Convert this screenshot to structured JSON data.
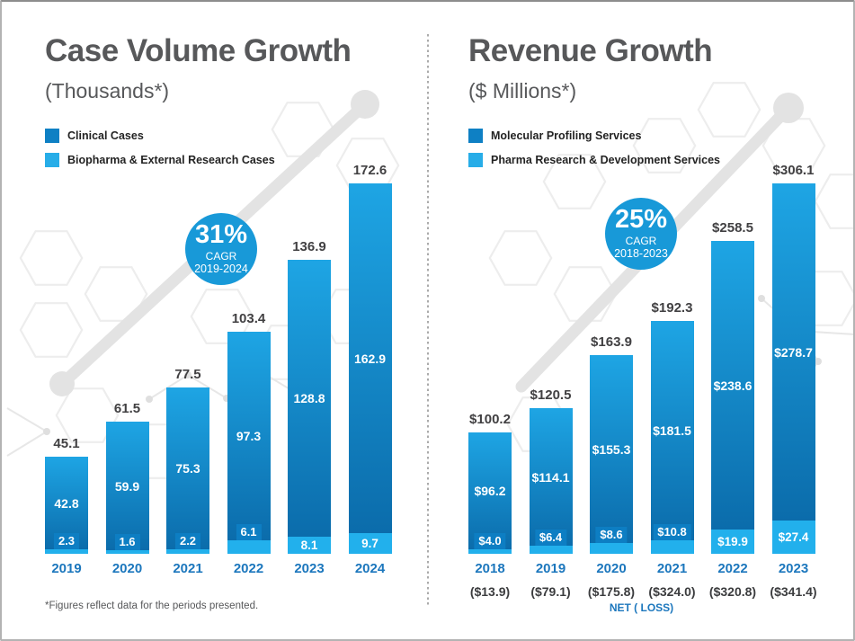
{
  "footnote": "*Figures reflect data for the periods presented.",
  "colors": {
    "series_dark": "#0e80c4",
    "series_light": "#27ade8",
    "bar_gradient_top": "#1ea5e4",
    "bar_gradient_bottom": "#0b6cab",
    "chip": "#0d7ec3",
    "badge": "#1899d8",
    "year_label": "#1c77bd",
    "title_gray": "#57585a"
  },
  "chart_data": [
    {
      "type": "bar",
      "stacked": true,
      "title": "Case Volume Growth",
      "subtitle": "(Thousands*)",
      "value_prefix": "",
      "categories": [
        "2019",
        "2020",
        "2021",
        "2022",
        "2023",
        "2024"
      ],
      "series": [
        {
          "name": "Clinical Cases",
          "color": "#0e80c4",
          "values": [
            42.8,
            59.9,
            75.3,
            97.3,
            128.8,
            162.9
          ]
        },
        {
          "name": "Biopharma & External Research Cases",
          "color": "#27ade8",
          "values": [
            2.3,
            1.6,
            2.2,
            6.1,
            8.1,
            9.7
          ]
        }
      ],
      "totals": [
        45.1,
        61.5,
        77.5,
        103.4,
        136.9,
        172.6
      ],
      "cagr_badge": {
        "value": "31%",
        "label": "CAGR",
        "period": "2019-2024"
      },
      "legend_position": "top-left",
      "grid": false,
      "ylim": [
        0,
        180
      ]
    },
    {
      "type": "bar",
      "stacked": true,
      "title": "Revenue Growth",
      "subtitle": "($ Millions*)",
      "value_prefix": "$",
      "categories": [
        "2018",
        "2019",
        "2020",
        "2021",
        "2022",
        "2023"
      ],
      "series": [
        {
          "name": "Molecular Profiling Services",
          "color": "#0e80c4",
          "values": [
            96.2,
            114.1,
            155.3,
            181.5,
            238.6,
            278.7
          ]
        },
        {
          "name": "Pharma Research & Development Services",
          "color": "#27ade8",
          "values": [
            4.0,
            6.4,
            8.6,
            10.8,
            19.9,
            27.4
          ]
        }
      ],
      "totals": [
        100.2,
        120.5,
        163.9,
        192.3,
        258.5,
        306.1
      ],
      "cagr_badge": {
        "value": "25%",
        "label": "CAGR",
        "period": "2018-2023"
      },
      "net_loss": {
        "label": "NET ( LOSS)",
        "values": [
          "($13.9)",
          "($79.1)",
          "($175.8)",
          "($324.0)",
          "($320.8)",
          "($341.4)"
        ]
      },
      "legend_position": "top-left",
      "grid": false,
      "ylim": [
        0,
        320
      ]
    }
  ]
}
